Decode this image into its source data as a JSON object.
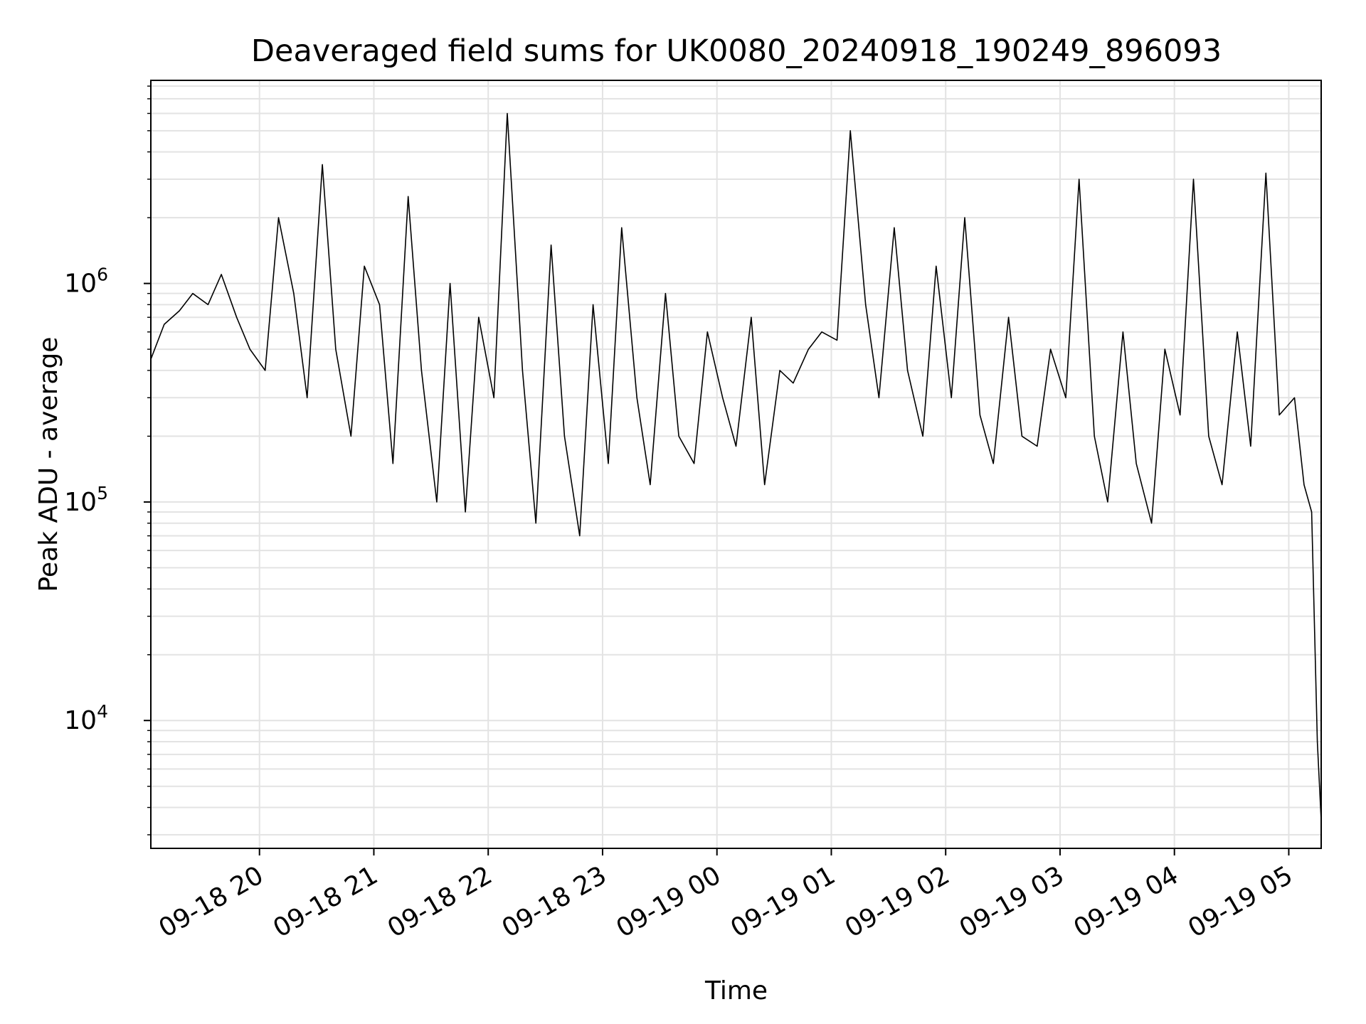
{
  "chart_data": {
    "type": "line",
    "title": "Deaveraged field sums for UK0080_20240918_190249_896093",
    "xlabel": "Time",
    "ylabel": "Peak ADU - average",
    "yscale": "log",
    "ylim": [
      2600,
      8500000
    ],
    "xlim": [
      "2024-09-18 19:03",
      "2024-09-19 05:17"
    ],
    "grid": true,
    "line_color": "#000000",
    "y_ticks": [
      {
        "value": 10000,
        "base": "10",
        "exp": "4"
      },
      {
        "value": 100000,
        "base": "10",
        "exp": "5"
      },
      {
        "value": 1000000,
        "base": "10",
        "exp": "6"
      }
    ],
    "x_ticks": [
      {
        "value": "2024-09-18 20:00",
        "label": "09-18 20"
      },
      {
        "value": "2024-09-18 21:00",
        "label": "09-18 21"
      },
      {
        "value": "2024-09-18 22:00",
        "label": "09-18 22"
      },
      {
        "value": "2024-09-18 23:00",
        "label": "09-18 23"
      },
      {
        "value": "2024-09-19 00:00",
        "label": "09-19 00"
      },
      {
        "value": "2024-09-19 01:00",
        "label": "09-19 01"
      },
      {
        "value": "2024-09-19 02:00",
        "label": "09-19 02"
      },
      {
        "value": "2024-09-19 03:00",
        "label": "09-19 03"
      },
      {
        "value": "2024-09-19 04:00",
        "label": "09-19 04"
      },
      {
        "value": "2024-09-19 05:00",
        "label": "09-19 05"
      }
    ],
    "series": [
      {
        "x": [
          "2024-09-18 19:03",
          "2024-09-18 19:10",
          "2024-09-18 19:18",
          "2024-09-18 19:25",
          "2024-09-18 19:33",
          "2024-09-18 19:40",
          "2024-09-18 19:48",
          "2024-09-18 19:55",
          "2024-09-18 20:03",
          "2024-09-18 20:10",
          "2024-09-18 20:18",
          "2024-09-18 20:25",
          "2024-09-18 20:33",
          "2024-09-18 20:40",
          "2024-09-18 20:48",
          "2024-09-18 20:55",
          "2024-09-18 21:03",
          "2024-09-18 21:10",
          "2024-09-18 21:18",
          "2024-09-18 21:25",
          "2024-09-18 21:33",
          "2024-09-18 21:40",
          "2024-09-18 21:48",
          "2024-09-18 21:55",
          "2024-09-18 22:03",
          "2024-09-18 22:10",
          "2024-09-18 22:18",
          "2024-09-18 22:25",
          "2024-09-18 22:33",
          "2024-09-18 22:40",
          "2024-09-18 22:48",
          "2024-09-18 22:55",
          "2024-09-18 23:03",
          "2024-09-18 23:10",
          "2024-09-18 23:18",
          "2024-09-18 23:25",
          "2024-09-18 23:33",
          "2024-09-18 23:40",
          "2024-09-18 23:48",
          "2024-09-18 23:55",
          "2024-09-19 00:03",
          "2024-09-19 00:10",
          "2024-09-19 00:18",
          "2024-09-19 00:25",
          "2024-09-19 00:33",
          "2024-09-19 00:40",
          "2024-09-19 00:48",
          "2024-09-19 00:55",
          "2024-09-19 01:03",
          "2024-09-19 01:10",
          "2024-09-19 01:18",
          "2024-09-19 01:25",
          "2024-09-19 01:33",
          "2024-09-19 01:40",
          "2024-09-19 01:48",
          "2024-09-19 01:55",
          "2024-09-19 02:03",
          "2024-09-19 02:10",
          "2024-09-19 02:18",
          "2024-09-19 02:25",
          "2024-09-19 02:33",
          "2024-09-19 02:40",
          "2024-09-19 02:48",
          "2024-09-19 02:55",
          "2024-09-19 03:03",
          "2024-09-19 03:10",
          "2024-09-19 03:18",
          "2024-09-19 03:25",
          "2024-09-19 03:33",
          "2024-09-19 03:40",
          "2024-09-19 03:48",
          "2024-09-19 03:55",
          "2024-09-19 04:03",
          "2024-09-19 04:10",
          "2024-09-19 04:18",
          "2024-09-19 04:25",
          "2024-09-19 04:33",
          "2024-09-19 04:40",
          "2024-09-19 04:48",
          "2024-09-19 04:55",
          "2024-09-19 05:03",
          "2024-09-19 05:08",
          "2024-09-19 05:12",
          "2024-09-19 05:15",
          "2024-09-19 05:17"
        ],
        "y": [
          450000,
          650000,
          750000,
          900000,
          800000,
          1100000,
          700000,
          500000,
          400000,
          2000000,
          900000,
          300000,
          3500000,
          500000,
          200000,
          1200000,
          800000,
          150000,
          2500000,
          400000,
          100000,
          1000000,
          90000,
          700000,
          300000,
          6000000,
          400000,
          80000,
          1500000,
          200000,
          70000,
          800000,
          150000,
          1800000,
          300000,
          120000,
          900000,
          200000,
          150000,
          600000,
          300000,
          180000,
          700000,
          120000,
          400000,
          350000,
          500000,
          600000,
          550000,
          5000000,
          800000,
          300000,
          1800000,
          400000,
          200000,
          1200000,
          300000,
          2000000,
          250000,
          150000,
          700000,
          200000,
          180000,
          500000,
          300000,
          3000000,
          200000,
          100000,
          600000,
          150000,
          80000,
          500000,
          250000,
          3000000,
          200000,
          120000,
          600000,
          180000,
          3200000,
          250000,
          300000,
          120000,
          90000,
          8000,
          3500
        ]
      }
    ]
  }
}
